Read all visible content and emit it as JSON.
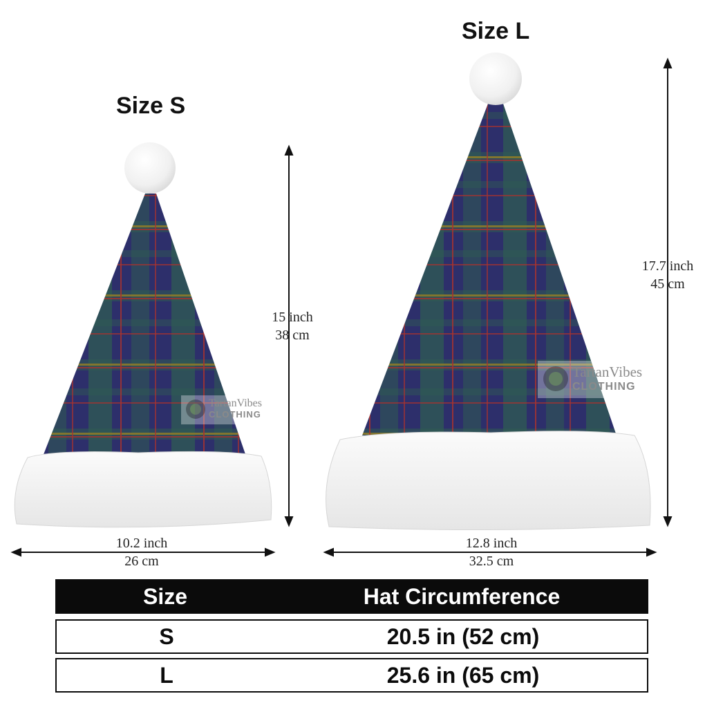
{
  "hats": [
    {
      "title": "Size S",
      "height_inch": "15 inch",
      "height_cm": "38 cm",
      "width_inch": "10.2 inch",
      "width_cm": "26 cm"
    },
    {
      "title": "Size L",
      "height_inch": "17.7 inch",
      "height_cm": "45 cm",
      "width_inch": "12.8 inch",
      "width_cm": "32.5 cm"
    }
  ],
  "watermark": {
    "line1": "TartanVibes",
    "line2": "CLOTHING"
  },
  "table": {
    "headers": [
      "Size",
      "Hat Circumference"
    ],
    "rows": [
      [
        "S",
        "20.5 in (52 cm)"
      ],
      [
        "L",
        "25.6 in (65 cm)"
      ]
    ]
  },
  "colors": {
    "tartan_base": "#2d2f6b",
    "tartan_green": "#2f5a52",
    "tartan_red": "#a8322e",
    "tartan_gold": "#8a7a2a",
    "fur": "#f2f2f2"
  }
}
